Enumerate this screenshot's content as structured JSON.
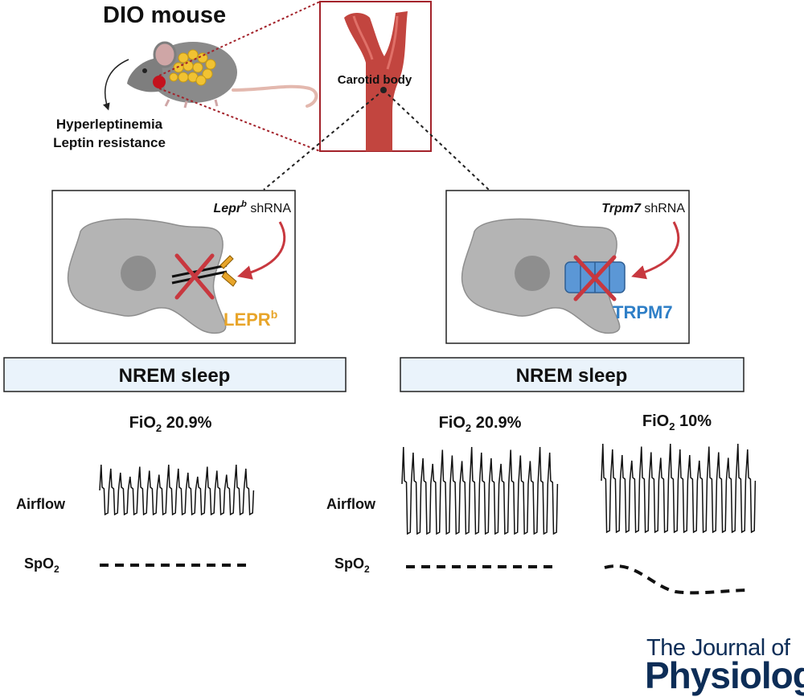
{
  "header": {
    "title": "DIO mouse",
    "condition_line1": "Hyperleptinemia",
    "condition_line2": "Leptin resistance",
    "carotid_label": "Carotid body"
  },
  "left_panel": {
    "shrna_gene": "Lepr",
    "shrna_gene_sup": "b",
    "shrna_suffix": " shRNA",
    "receptor_label": "LEPR",
    "receptor_sup": "b",
    "receptor_color": "#e8a52a",
    "banner": "NREM sleep",
    "fio2_prefix": "FiO",
    "fio2_sub": "2",
    "fio2_value": " 20.9%",
    "airflow_label": "Airflow",
    "spo2_prefix": "SpO",
    "spo2_sub": "2"
  },
  "right_panel": {
    "shrna_gene": "Trpm7",
    "shrna_suffix": " shRNA",
    "channel_label": "TRPM7",
    "channel_color": "#2f7fc7",
    "banner": "NREM sleep",
    "cond1_prefix": "FiO",
    "cond1_sub": "2",
    "cond1_value": " 20.9%",
    "cond2_prefix": "FiO",
    "cond2_sub": "2",
    "cond2_value": " 10%",
    "airflow_label": "Airflow",
    "spo2_prefix": "SpO",
    "spo2_sub": "2"
  },
  "journal": {
    "line1": "The Journal of",
    "line2": "Physiology"
  },
  "colors": {
    "banner_fill": "#eaf3fb",
    "cell_fill": "#b4b4b4",
    "nucleus_fill": "#8e8e8e",
    "cross": "#c8383f",
    "arrow": "#c8383f",
    "artery": "#c2453f",
    "box_border": "#a3222a"
  }
}
